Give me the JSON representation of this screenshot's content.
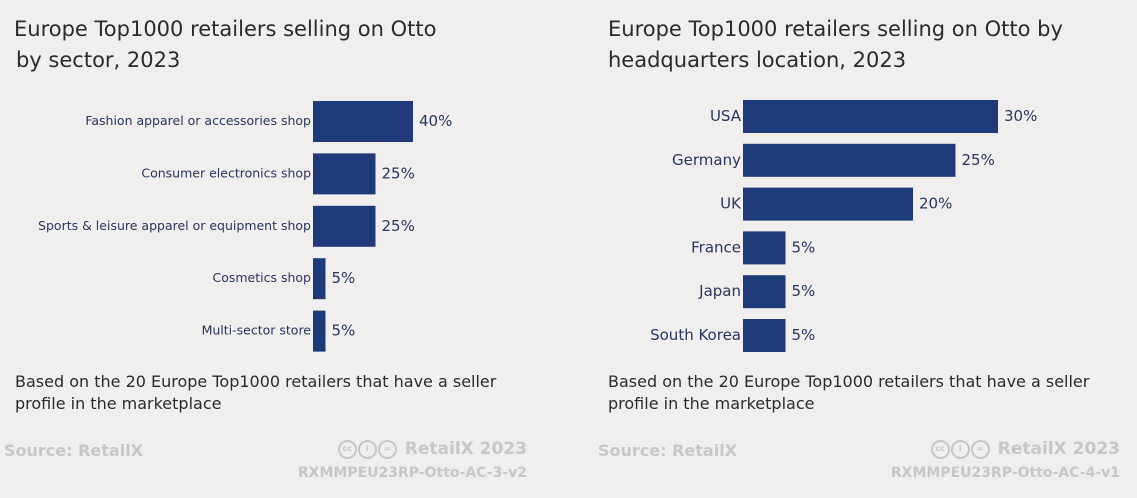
{
  "chart_data": [
    {
      "type": "bar",
      "orientation": "horizontal",
      "title_lines": [
        "Europe Top1000 retailers selling on Otto",
        "by sector, 2023"
      ],
      "categories": [
        "Fashion apparel or accessories shop",
        "Consumer electronics shop",
        "Sports & leisure apparel or equipment shop",
        "Cosmetics shop",
        "Multi-sector store"
      ],
      "values": [
        40,
        25,
        25,
        5,
        5
      ],
      "value_labels": [
        "40%",
        "25%",
        "25%",
        "5%",
        "5%"
      ],
      "unit": "%",
      "xlim": [
        0,
        40
      ],
      "grid": false,
      "bar_color": "#1f3a78",
      "note": "Based on the 20 Europe Top1000 retailers that have a seller profile in the marketplace",
      "source": "Source: RetailX",
      "brand": "RetailX 2023",
      "code": "RXMMPEU23RP-Otto-AC-3-v2"
    },
    {
      "type": "bar",
      "orientation": "horizontal",
      "title_lines": [
        "Europe Top1000 retailers selling on Otto by",
        "headquarters location, 2023"
      ],
      "categories": [
        "USA",
        "Germany",
        "UK",
        "France",
        "Japan",
        "South Korea"
      ],
      "values": [
        30,
        25,
        20,
        5,
        5,
        5
      ],
      "value_labels": [
        "30%",
        "25%",
        "20%",
        "5%",
        "5%",
        "5%"
      ],
      "unit": "%",
      "xlim": [
        0,
        30
      ],
      "grid": false,
      "bar_color": "#1f3a78",
      "note": "Based on the 20 Europe Top1000 retailers that have a seller profile in the marketplace",
      "source": "Source: RetailX",
      "brand": "RetailX 2023",
      "code": "RXMMPEU23RP-Otto-AC-4-v1"
    }
  ]
}
